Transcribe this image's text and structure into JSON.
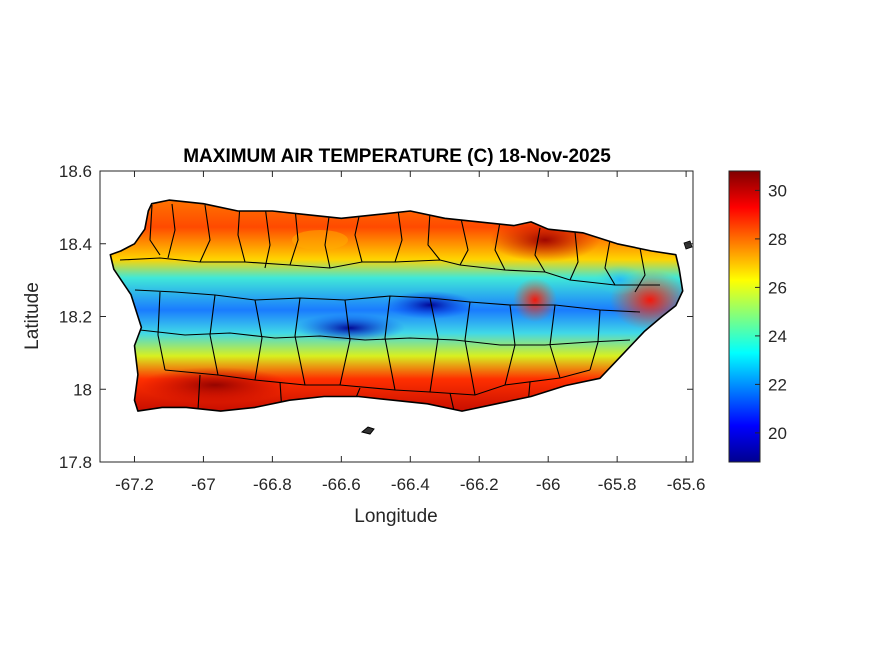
{
  "map": {
    "title": "MAXIMUM AIR TEMPERATURE (C) 18-Nov-2025",
    "xlabel": "Longitude",
    "ylabel": "Latitude",
    "xlim": [
      -67.3,
      -65.58
    ],
    "ylim": [
      17.8,
      18.6
    ],
    "xticks": [
      -67.2,
      -67,
      -66.8,
      -66.6,
      -66.4,
      -66.2,
      -66,
      -65.8,
      -65.6
    ],
    "xtick_labels": [
      "-67.2",
      "-67",
      "-66.8",
      "-66.6",
      "-66.4",
      "-66.2",
      "-66",
      "-65.8",
      "-65.6"
    ],
    "yticks": [
      17.8,
      18,
      18.2,
      18.4,
      18.6
    ],
    "ytick_labels": [
      "17.8",
      "18",
      "18.2",
      "18.4",
      "18.6"
    ],
    "region": "Puerto Rico",
    "colormap": "jet",
    "colors": {
      "cold": "#00008f",
      "cool": "#0080ff",
      "mild": "#40e0d0",
      "warm": "#ffff00",
      "hot": "#ff8000",
      "hottest": "#800000",
      "boundary": "#000000"
    }
  },
  "colorbar": {
    "range": [
      18.8,
      30.8
    ],
    "ticks": [
      20,
      22,
      24,
      26,
      28,
      30
    ],
    "tick_labels": [
      "20",
      "22",
      "24",
      "26",
      "28",
      "30"
    ]
  }
}
